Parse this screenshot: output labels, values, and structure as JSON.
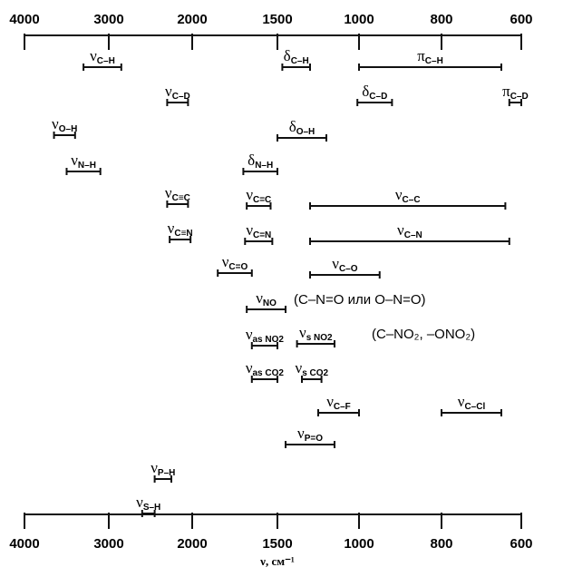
{
  "chart_data": {
    "type": "range-bars",
    "title": "",
    "x_axis": {
      "label": "ν, см⁻¹",
      "ticks": [
        "4000",
        "3000",
        "2000",
        "1500",
        "1000",
        "800",
        "600"
      ],
      "scale": "piecewise-linear"
    },
    "bands": [
      {
        "symbol": "ν",
        "sub": "C–H",
        "from": 3300,
        "to": 2850
      },
      {
        "symbol": "δ",
        "sub": "C–H",
        "from": 1470,
        "to": 1300
      },
      {
        "symbol": "π",
        "sub": "C–H",
        "from": 1000,
        "to": 650
      },
      {
        "symbol": "ν",
        "sub": "C–D",
        "from": 2300,
        "to": 2050
      },
      {
        "symbol": "δ",
        "sub": "C–D",
        "from": 1010,
        "to": 920
      },
      {
        "symbol": "π",
        "sub": "C–D",
        "from": 630,
        "to": 590
      },
      {
        "symbol": "ν",
        "sub": "O–H",
        "from": 3650,
        "to": 3400
      },
      {
        "symbol": "δ",
        "sub": "O–H",
        "from": 1500,
        "to": 1200
      },
      {
        "symbol": "ν",
        "sub": "N–H",
        "from": 3500,
        "to": 3100
      },
      {
        "symbol": "δ",
        "sub": "N–H",
        "from": 1700,
        "to": 1500
      },
      {
        "symbol": "ν",
        "sub": "C≡C",
        "from": 2300,
        "to": 2050
      },
      {
        "symbol": "ν",
        "sub": "C=C",
        "from": 1680,
        "to": 1540
      },
      {
        "symbol": "ν",
        "sub": "C–C",
        "from": 1300,
        "to": 640
      },
      {
        "symbol": "ν",
        "sub": "C≡N",
        "from": 2270,
        "to": 2020
      },
      {
        "symbol": "ν",
        "sub": "C=N",
        "from": 1690,
        "to": 1530
      },
      {
        "symbol": "ν",
        "sub": "C–N",
        "from": 1300,
        "to": 630
      },
      {
        "symbol": "ν",
        "sub": "C=O",
        "from": 1850,
        "to": 1650
      },
      {
        "symbol": "ν",
        "sub": "C–O",
        "from": 1300,
        "to": 950
      },
      {
        "symbol": "ν",
        "sub": "NO",
        "from": 1680,
        "to": 1450
      },
      {
        "symbol": "ν",
        "sub": "as NO2",
        "from": 1650,
        "to": 1500
      },
      {
        "symbol": "ν",
        "sub": "s NO2",
        "from": 1380,
        "to": 1150
      },
      {
        "symbol": "ν",
        "sub": "as CO2",
        "from": 1650,
        "to": 1500
      },
      {
        "symbol": "ν",
        "sub": "s CO2",
        "from": 1350,
        "to": 1230
      },
      {
        "symbol": "ν",
        "sub": "C–F",
        "from": 1250,
        "to": 1000
      },
      {
        "symbol": "ν",
        "sub": "C–Cl",
        "from": 800,
        "to": 650
      },
      {
        "symbol": "ν",
        "sub": "P=O",
        "from": 1450,
        "to": 1150
      },
      {
        "symbol": "ν",
        "sub": "P–H",
        "from": 2450,
        "to": 2250
      },
      {
        "symbol": "ν",
        "sub": "S–H",
        "from": 2600,
        "to": 2450
      }
    ],
    "notes": [
      "(C–N=O или O–N=O)",
      "(C–NO₂, –ONO₂)"
    ]
  }
}
